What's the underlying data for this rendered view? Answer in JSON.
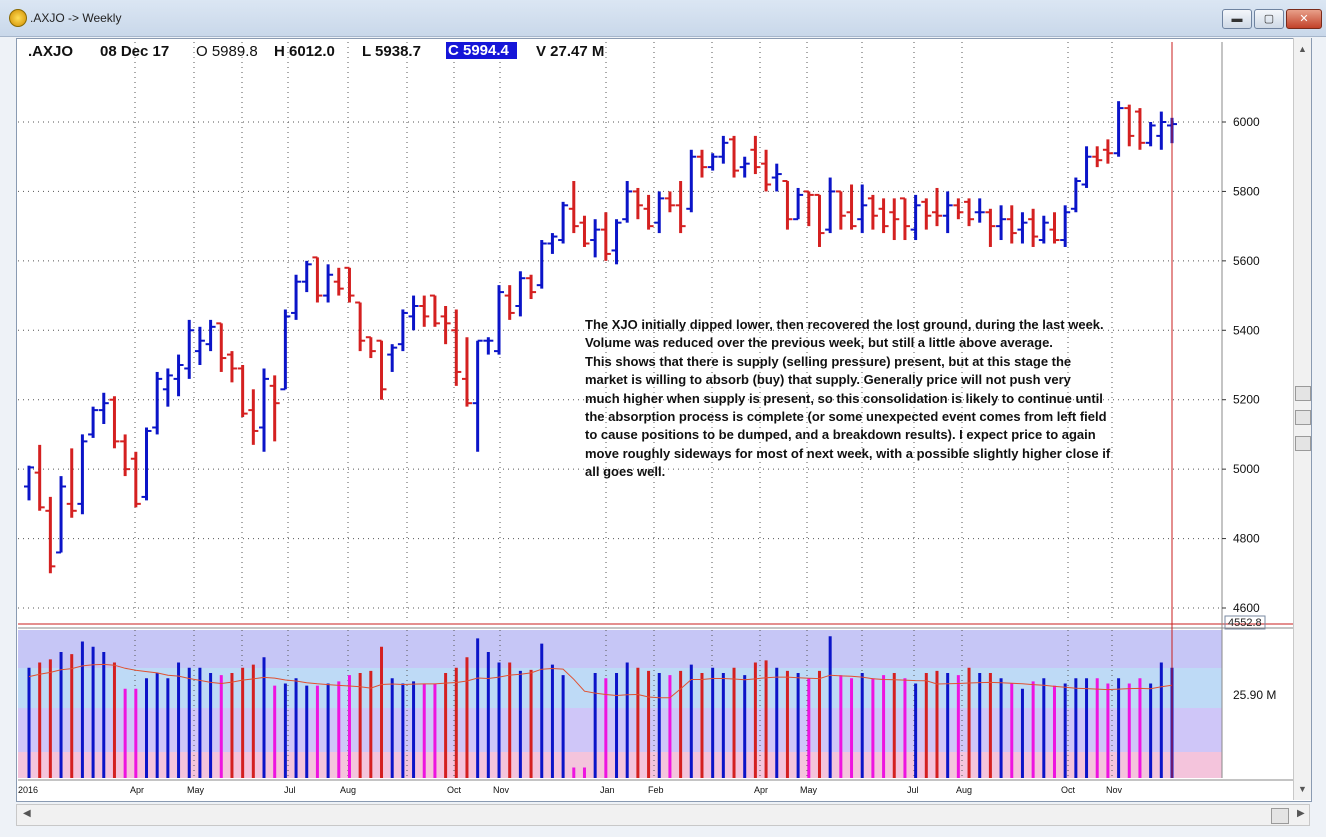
{
  "window": {
    "title": ".AXJO -> Weekly",
    "minimize_label": "▬",
    "maximize_label": "▢",
    "close_label": "✕"
  },
  "colors": {
    "up": "#0b14c8",
    "down": "#d42020",
    "vol_down_low": "#ee14e0",
    "grid": "#555555",
    "cursor": "#c81e1e"
  },
  "header": {
    "symbol": ".AXJO",
    "date": "08 Dec 17",
    "open": "O 5989.8",
    "high": "H 6012.0",
    "low": "L 5938.7",
    "close": "C 5994.4",
    "volume": "V 27.47 M"
  },
  "annotation": [
    "The XJO initially dipped lower, then recovered the lost ground, during the last week.",
    "Volume was reduced over the previous week, but still a little above average.",
    "This shows that there is supply (selling pressure) present, but at this stage the",
    "market is willing to absorb (buy) that supply.  Generally price will not push very",
    "much higher when supply is present, so this consolidation is likely to continue until",
    "the absorption process is complete (or some unexpected event comes from left field",
    "to cause positions to be dumped, and a breakdown results).  I expect price to again",
    "move roughly sideways for most of next week, with a possible slightly higher close if",
    "all goes well."
  ],
  "chart_data": {
    "type": "ohlc",
    "price_ticks": [
      4600,
      4800,
      5000,
      5200,
      5400,
      5600,
      5800,
      6000
    ],
    "price_low_tag": "4552.8",
    "volume_tick": "25.90 M",
    "x_labels": [
      "2016",
      "Apr",
      "May",
      "Jul",
      "Aug",
      "Oct",
      "Nov",
      "Jan",
      "Feb",
      "Apr",
      "May",
      "Jul",
      "Aug",
      "Oct",
      "Nov"
    ],
    "bars": [
      {
        "o": 4950,
        "h": 5010,
        "l": 4910,
        "c": 5005,
        "v": 1.05
      },
      {
        "o": 4990,
        "h": 5070,
        "l": 4880,
        "c": 4890,
        "v": 1.1
      },
      {
        "o": 4880,
        "h": 4920,
        "l": 4700,
        "c": 4720,
        "v": 1.13
      },
      {
        "o": 4760,
        "h": 4980,
        "l": 4760,
        "c": 4950,
        "v": 1.2
      },
      {
        "o": 4900,
        "h": 5060,
        "l": 4860,
        "c": 4880,
        "v": 1.18
      },
      {
        "o": 4900,
        "h": 5100,
        "l": 4870,
        "c": 5080,
        "v": 1.3
      },
      {
        "o": 5100,
        "h": 5180,
        "l": 5090,
        "c": 5170,
        "v": 1.25
      },
      {
        "o": 5170,
        "h": 5220,
        "l": 5130,
        "c": 5190,
        "v": 1.2
      },
      {
        "o": 5200,
        "h": 5210,
        "l": 5060,
        "c": 5080,
        "v": 1.1
      },
      {
        "o": 5080,
        "h": 5100,
        "l": 4980,
        "c": 5000,
        "v": 0.85
      },
      {
        "o": 5030,
        "h": 5050,
        "l": 4890,
        "c": 4900,
        "v": 0.85
      },
      {
        "o": 4920,
        "h": 5120,
        "l": 4910,
        "c": 5110,
        "v": 0.95
      },
      {
        "o": 5120,
        "h": 5280,
        "l": 5100,
        "c": 5260,
        "v": 1.0
      },
      {
        "o": 5230,
        "h": 5290,
        "l": 5180,
        "c": 5270,
        "v": 0.95
      },
      {
        "o": 5260,
        "h": 5330,
        "l": 5210,
        "c": 5300,
        "v": 1.1
      },
      {
        "o": 5290,
        "h": 5430,
        "l": 5260,
        "c": 5400,
        "v": 1.05
      },
      {
        "o": 5340,
        "h": 5410,
        "l": 5300,
        "c": 5370,
        "v": 1.05
      },
      {
        "o": 5360,
        "h": 5430,
        "l": 5340,
        "c": 5410,
        "v": 1.0
      },
      {
        "o": 5420,
        "h": 5420,
        "l": 5280,
        "c": 5320,
        "v": 0.98
      },
      {
        "o": 5330,
        "h": 5340,
        "l": 5250,
        "c": 5290,
        "v": 1.0
      },
      {
        "o": 5290,
        "h": 5300,
        "l": 5150,
        "c": 5160,
        "v": 1.05
      },
      {
        "o": 5170,
        "h": 5230,
        "l": 5070,
        "c": 5110,
        "v": 1.08
      },
      {
        "o": 5120,
        "h": 5290,
        "l": 5050,
        "c": 5260,
        "v": 1.15
      },
      {
        "o": 5240,
        "h": 5270,
        "l": 5080,
        "c": 5190,
        "v": 0.88
      },
      {
        "o": 5230,
        "h": 5460,
        "l": 5230,
        "c": 5440,
        "v": 0.9
      },
      {
        "o": 5450,
        "h": 5560,
        "l": 5430,
        "c": 5540,
        "v": 0.95
      },
      {
        "o": 5540,
        "h": 5600,
        "l": 5510,
        "c": 5590,
        "v": 0.88
      },
      {
        "o": 5610,
        "h": 5610,
        "l": 5480,
        "c": 5500,
        "v": 0.88
      },
      {
        "o": 5500,
        "h": 5590,
        "l": 5480,
        "c": 5560,
        "v": 0.9
      },
      {
        "o": 5540,
        "h": 5580,
        "l": 5500,
        "c": 5520,
        "v": 0.92
      },
      {
        "o": 5580,
        "h": 5580,
        "l": 5480,
        "c": 5500,
        "v": 0.98
      },
      {
        "o": 5480,
        "h": 5480,
        "l": 5340,
        "c": 5370,
        "v": 1.0
      },
      {
        "o": 5380,
        "h": 5380,
        "l": 5320,
        "c": 5340,
        "v": 1.02
      },
      {
        "o": 5370,
        "h": 5370,
        "l": 5200,
        "c": 5230,
        "v": 1.25
      },
      {
        "o": 5330,
        "h": 5360,
        "l": 5280,
        "c": 5350,
        "v": 0.95
      },
      {
        "o": 5360,
        "h": 5460,
        "l": 5340,
        "c": 5450,
        "v": 0.9
      },
      {
        "o": 5440,
        "h": 5500,
        "l": 5400,
        "c": 5470,
        "v": 0.92
      },
      {
        "o": 5470,
        "h": 5500,
        "l": 5410,
        "c": 5440,
        "v": 0.9
      },
      {
        "o": 5500,
        "h": 5500,
        "l": 5410,
        "c": 5420,
        "v": 0.9
      },
      {
        "o": 5440,
        "h": 5470,
        "l": 5360,
        "c": 5420,
        "v": 1.0
      },
      {
        "o": 5400,
        "h": 5460,
        "l": 5240,
        "c": 5280,
        "v": 1.05
      },
      {
        "o": 5260,
        "h": 5380,
        "l": 5180,
        "c": 5190,
        "v": 1.15
      },
      {
        "o": 5190,
        "h": 5370,
        "l": 5050,
        "c": 5370,
        "v": 1.33
      },
      {
        "o": 5370,
        "h": 5380,
        "l": 5330,
        "c": 5370,
        "v": 1.2
      },
      {
        "o": 5340,
        "h": 5530,
        "l": 5330,
        "c": 5510,
        "v": 1.1
      },
      {
        "o": 5500,
        "h": 5530,
        "l": 5430,
        "c": 5450,
        "v": 1.1
      },
      {
        "o": 5470,
        "h": 5570,
        "l": 5440,
        "c": 5550,
        "v": 1.02
      },
      {
        "o": 5550,
        "h": 5560,
        "l": 5490,
        "c": 5510,
        "v": 1.03
      },
      {
        "o": 5530,
        "h": 5660,
        "l": 5520,
        "c": 5650,
        "v": 1.28
      },
      {
        "o": 5650,
        "h": 5680,
        "l": 5620,
        "c": 5670,
        "v": 1.08
      },
      {
        "o": 5660,
        "h": 5770,
        "l": 5650,
        "c": 5760,
        "v": 0.98
      },
      {
        "o": 5750,
        "h": 5830,
        "l": 5680,
        "c": 5700,
        "v": 0.1
      },
      {
        "o": 5710,
        "h": 5730,
        "l": 5640,
        "c": 5650,
        "v": 0.1
      },
      {
        "o": 5660,
        "h": 5720,
        "l": 5610,
        "c": 5690,
        "v": 1.0
      },
      {
        "o": 5690,
        "h": 5740,
        "l": 5600,
        "c": 5620,
        "v": 0.95
      },
      {
        "o": 5630,
        "h": 5720,
        "l": 5590,
        "c": 5710,
        "v": 1.0
      },
      {
        "o": 5720,
        "h": 5830,
        "l": 5710,
        "c": 5800,
        "v": 1.1
      },
      {
        "o": 5800,
        "h": 5810,
        "l": 5720,
        "c": 5760,
        "v": 1.05
      },
      {
        "o": 5750,
        "h": 5790,
        "l": 5690,
        "c": 5700,
        "v": 1.02
      },
      {
        "o": 5710,
        "h": 5800,
        "l": 5680,
        "c": 5780,
        "v": 1.0
      },
      {
        "o": 5780,
        "h": 5800,
        "l": 5740,
        "c": 5760,
        "v": 0.98
      },
      {
        "o": 5760,
        "h": 5830,
        "l": 5680,
        "c": 5700,
        "v": 1.02
      },
      {
        "o": 5750,
        "h": 5920,
        "l": 5740,
        "c": 5900,
        "v": 1.08
      },
      {
        "o": 5900,
        "h": 5920,
        "l": 5840,
        "c": 5870,
        "v": 1.0
      },
      {
        "o": 5870,
        "h": 5910,
        "l": 5860,
        "c": 5900,
        "v": 1.05
      },
      {
        "o": 5900,
        "h": 5960,
        "l": 5880,
        "c": 5940,
        "v": 1.0
      },
      {
        "o": 5950,
        "h": 5960,
        "l": 5840,
        "c": 5860,
        "v": 1.05
      },
      {
        "o": 5870,
        "h": 5900,
        "l": 5840,
        "c": 5880,
        "v": 0.98
      },
      {
        "o": 5920,
        "h": 5960,
        "l": 5850,
        "c": 5870,
        "v": 1.1
      },
      {
        "o": 5880,
        "h": 5920,
        "l": 5800,
        "c": 5820,
        "v": 1.12
      },
      {
        "o": 5840,
        "h": 5880,
        "l": 5800,
        "c": 5850,
        "v": 1.05
      },
      {
        "o": 5830,
        "h": 5830,
        "l": 5690,
        "c": 5720,
        "v": 1.02
      },
      {
        "o": 5720,
        "h": 5810,
        "l": 5720,
        "c": 5790,
        "v": 1.0
      },
      {
        "o": 5800,
        "h": 5800,
        "l": 5700,
        "c": 5790,
        "v": 0.95
      },
      {
        "o": 5790,
        "h": 5790,
        "l": 5640,
        "c": 5680,
        "v": 1.02
      },
      {
        "o": 5690,
        "h": 5840,
        "l": 5680,
        "c": 5800,
        "v": 1.35
      },
      {
        "o": 5800,
        "h": 5800,
        "l": 5690,
        "c": 5730,
        "v": 0.98
      },
      {
        "o": 5740,
        "h": 5820,
        "l": 5690,
        "c": 5700,
        "v": 0.95
      },
      {
        "o": 5720,
        "h": 5820,
        "l": 5680,
        "c": 5760,
        "v": 1.0
      },
      {
        "o": 5780,
        "h": 5790,
        "l": 5690,
        "c": 5730,
        "v": 0.95
      },
      {
        "o": 5750,
        "h": 5780,
        "l": 5680,
        "c": 5700,
        "v": 0.98
      },
      {
        "o": 5740,
        "h": 5780,
        "l": 5660,
        "c": 5720,
        "v": 1.0
      },
      {
        "o": 5780,
        "h": 5780,
        "l": 5660,
        "c": 5700,
        "v": 0.95
      },
      {
        "o": 5690,
        "h": 5790,
        "l": 5660,
        "c": 5760,
        "v": 0.9
      },
      {
        "o": 5770,
        "h": 5780,
        "l": 5690,
        "c": 5730,
        "v": 1.0
      },
      {
        "o": 5740,
        "h": 5810,
        "l": 5700,
        "c": 5730,
        "v": 1.02
      },
      {
        "o": 5730,
        "h": 5800,
        "l": 5680,
        "c": 5760,
        "v": 1.0
      },
      {
        "o": 5760,
        "h": 5780,
        "l": 5720,
        "c": 5740,
        "v": 0.98
      },
      {
        "o": 5770,
        "h": 5780,
        "l": 5700,
        "c": 5720,
        "v": 1.05
      },
      {
        "o": 5740,
        "h": 5780,
        "l": 5710,
        "c": 5740,
        "v": 1.0
      },
      {
        "o": 5740,
        "h": 5750,
        "l": 5640,
        "c": 5700,
        "v": 1.0
      },
      {
        "o": 5700,
        "h": 5760,
        "l": 5660,
        "c": 5720,
        "v": 0.95
      },
      {
        "o": 5720,
        "h": 5760,
        "l": 5650,
        "c": 5680,
        "v": 0.9
      },
      {
        "o": 5690,
        "h": 5740,
        "l": 5650,
        "c": 5710,
        "v": 0.85
      },
      {
        "o": 5720,
        "h": 5750,
        "l": 5640,
        "c": 5670,
        "v": 0.92
      },
      {
        "o": 5660,
        "h": 5730,
        "l": 5650,
        "c": 5710,
        "v": 0.95
      },
      {
        "o": 5690,
        "h": 5740,
        "l": 5650,
        "c": 5660,
        "v": 0.88
      },
      {
        "o": 5660,
        "h": 5760,
        "l": 5640,
        "c": 5740,
        "v": 0.9
      },
      {
        "o": 5750,
        "h": 5840,
        "l": 5740,
        "c": 5830,
        "v": 0.95
      },
      {
        "o": 5820,
        "h": 5930,
        "l": 5810,
        "c": 5900,
        "v": 0.95
      },
      {
        "o": 5900,
        "h": 5930,
        "l": 5870,
        "c": 5890,
        "v": 0.95
      },
      {
        "o": 5920,
        "h": 5950,
        "l": 5880,
        "c": 5910,
        "v": 0.9
      },
      {
        "o": 5910,
        "h": 6060,
        "l": 5900,
        "c": 6040,
        "v": 0.95
      },
      {
        "o": 6040,
        "h": 6050,
        "l": 5930,
        "c": 5960,
        "v": 0.9
      },
      {
        "o": 6030,
        "h": 6040,
        "l": 5920,
        "c": 5940,
        "v": 0.95
      },
      {
        "o": 5940,
        "h": 6000,
        "l": 5930,
        "c": 5990,
        "v": 0.9
      },
      {
        "o": 5960,
        "h": 6030,
        "l": 5920,
        "c": 6000,
        "v": 1.1
      },
      {
        "o": 5990,
        "h": 6012,
        "l": 5939,
        "c": 5994,
        "v": 1.05
      }
    ]
  }
}
